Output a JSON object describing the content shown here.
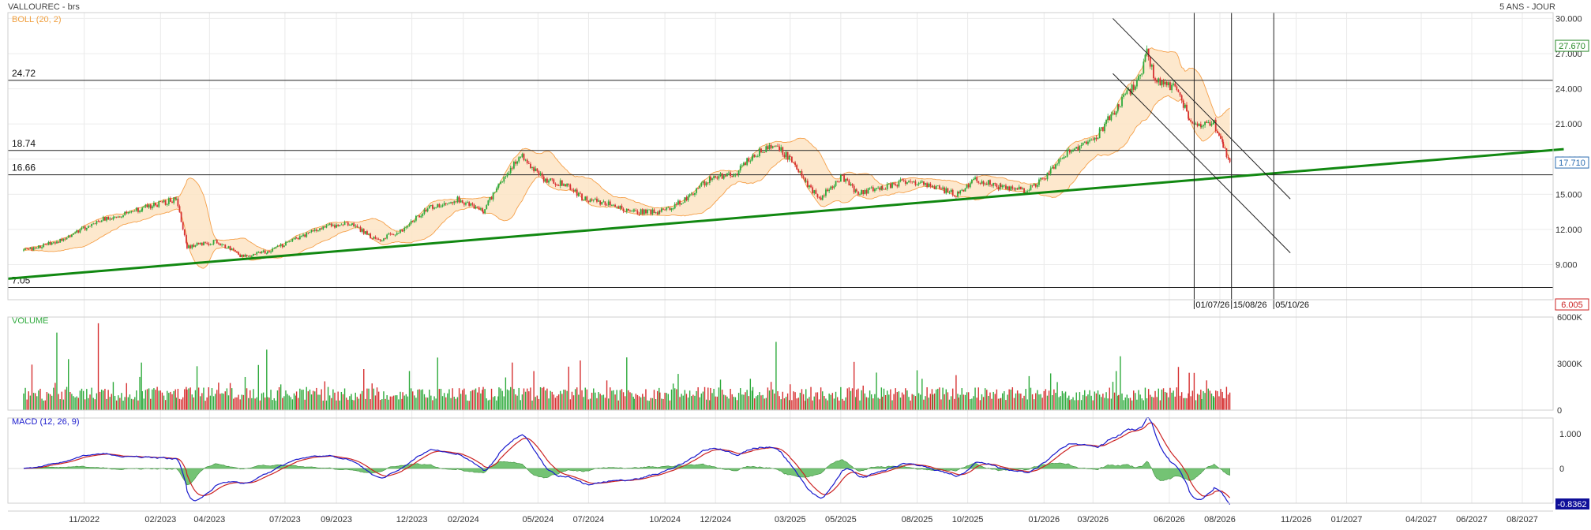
{
  "header": {
    "instrument": "VALLOUREC - brs",
    "period": "5 ANS - JOUR"
  },
  "panels": {
    "price_title": "BOLL (20, 2)",
    "volume_title": "VOLUME",
    "macd_title": "MACD (12, 26, 9)"
  },
  "colors": {
    "up": "#2eaa3c",
    "down": "#d63031",
    "bollinger_fill": "#fde4c4",
    "bollinger_line": "#f5a04a",
    "trendline": "#118811",
    "macd": "#1a1acd",
    "signal": "#cc2222",
    "histogram": "#5cb85c",
    "last_price_box": "#2b6cb0",
    "high_box": "#2a8a2a",
    "low_box": "#cc2222",
    "macd_box": "#0f0f99"
  },
  "chart_data": [
    {
      "type": "candlestick",
      "title": "BOLL (20, 2)",
      "x_ticks": [
        "11/2022",
        "02/2023",
        "04/2023",
        "07/2023",
        "09/2023",
        "12/2023",
        "02/2024",
        "05/2024",
        "07/2024",
        "10/2024",
        "12/2024",
        "03/2025",
        "05/2025",
        "08/2025",
        "10/2025",
        "01/2026",
        "03/2026",
        "06/2026",
        "08/2026",
        "11/2026",
        "01/2027",
        "04/2027",
        "06/2027",
        "08/2027"
      ],
      "y_ticks": [
        "30.000",
        "27.000",
        "24.000",
        "21.000",
        "18.000",
        "15.000",
        "12.000",
        "9.000"
      ],
      "ylim": [
        6.005,
        30.5
      ],
      "price_path": [
        [
          "2022-08-20",
          10.2
        ],
        [
          "2022-10-01",
          11.0
        ],
        [
          "2022-11-20",
          12.8
        ],
        [
          "2023-01-10",
          13.8
        ],
        [
          "2023-02-20",
          14.6
        ],
        [
          "2023-03-05",
          10.5
        ],
        [
          "2023-04-10",
          11.0
        ],
        [
          "2023-05-10",
          9.7
        ],
        [
          "2023-06-10",
          10.1
        ],
        [
          "2023-07-15",
          11.2
        ],
        [
          "2023-08-20",
          12.3
        ],
        [
          "2023-09-20",
          12.5
        ],
        [
          "2023-10-20",
          11.0
        ],
        [
          "2023-11-20",
          12.0
        ],
        [
          "2023-12-20",
          13.8
        ],
        [
          "2024-01-25",
          14.6
        ],
        [
          "2024-02-25",
          13.6
        ],
        [
          "2024-03-15",
          15.8
        ],
        [
          "2024-04-10",
          18.3
        ],
        [
          "2024-05-10",
          16.2
        ],
        [
          "2024-06-05",
          15.8
        ],
        [
          "2024-06-25",
          14.6
        ],
        [
          "2024-07-25",
          14.2
        ],
        [
          "2024-08-25",
          13.5
        ],
        [
          "2024-09-25",
          13.5
        ],
        [
          "2024-10-25",
          14.5
        ],
        [
          "2024-11-25",
          16.4
        ],
        [
          "2024-12-25",
          16.8
        ],
        [
          "2025-01-15",
          18.3
        ],
        [
          "2025-02-10",
          19.2
        ],
        [
          "2025-03-01",
          18.0
        ],
        [
          "2025-03-20",
          16.0
        ],
        [
          "2025-04-05",
          14.6
        ],
        [
          "2025-05-01",
          16.5
        ],
        [
          "2025-05-20",
          15.2
        ],
        [
          "2025-06-20",
          15.5
        ],
        [
          "2025-07-20",
          16.2
        ],
        [
          "2025-08-20",
          15.6
        ],
        [
          "2025-09-20",
          15.0
        ],
        [
          "2025-10-10",
          16.3
        ],
        [
          "2025-11-10",
          15.6
        ],
        [
          "2025-12-10",
          15.3
        ],
        [
          "2026-01-05",
          16.6
        ],
        [
          "2026-02-01",
          18.8
        ],
        [
          "2026-03-01",
          19.5
        ],
        [
          "2026-04-01",
          22.6
        ],
        [
          "2026-04-25",
          24.8
        ],
        [
          "2026-05-05",
          27.2
        ],
        [
          "2026-05-15",
          24.6
        ],
        [
          "2026-06-10",
          24.1
        ],
        [
          "2026-06-25",
          21.5
        ],
        [
          "2026-07-10",
          20.8
        ],
        [
          "2026-07-25",
          21.0
        ],
        [
          "2026-08-05",
          19.0
        ],
        [
          "2026-08-15",
          17.7
        ]
      ],
      "bollinger": {
        "period": 20,
        "deviations": 2
      },
      "levels": [
        24.72,
        18.74,
        16.66,
        7.05
      ],
      "trendline": {
        "from": [
          "2022-08-01",
          7.8
        ],
        "to": [
          "2027-09-20",
          18.85
        ]
      },
      "channel_lines": [
        {
          "from": [
            "2026-03-25",
            30.0
          ],
          "to": [
            "2026-10-25",
            14.6
          ]
        },
        {
          "from": [
            "2026-03-25",
            25.3
          ],
          "to": [
            "2026-10-25",
            10.0
          ]
        }
      ],
      "vertical_markers": [
        {
          "date": "2026-07-01",
          "label": "01/07/26"
        },
        {
          "date": "2026-08-15",
          "label": "15/08/26"
        },
        {
          "date": "2026-10-05",
          "label": "05/10/26"
        }
      ],
      "last_price": "17.710",
      "range_high": "27.670",
      "range_low": "6.005"
    },
    {
      "type": "bar",
      "title": "VOLUME",
      "y_ticks": [
        "6000K",
        "3000K",
        "0"
      ],
      "ylim": [
        0,
        6000
      ]
    },
    {
      "type": "line",
      "title": "MACD (12, 26, 9)",
      "y_ticks": [
        "1.000",
        "0"
      ],
      "series": [
        {
          "name": "MACD"
        },
        {
          "name": "Signal"
        },
        {
          "name": "Histogram"
        }
      ],
      "last_value": "-0.8362"
    }
  ]
}
